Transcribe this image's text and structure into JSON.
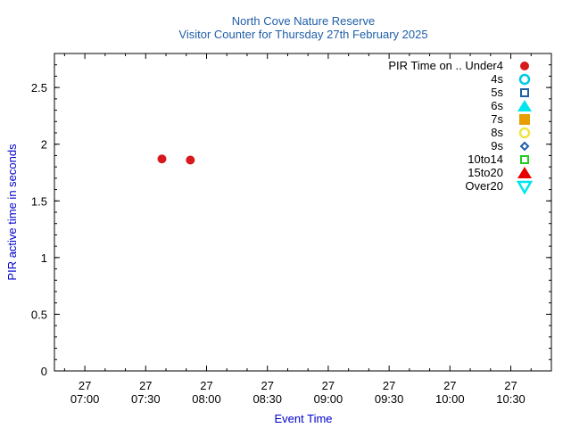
{
  "chart_data": {
    "type": "scatter",
    "title": "North Cove Nature Reserve",
    "subtitle": "Visitor Counter for Thursday 27th February 2025",
    "xlabel": "Event Time",
    "ylabel": "PIR active time in seconds",
    "xlim": [
      "2025-02-27T06:45",
      "2025-02-27T10:50"
    ],
    "ylim": [
      0,
      2.8
    ],
    "yticks": [
      0,
      0.5,
      1,
      1.5,
      2,
      2.5
    ],
    "ytick_labels": [
      "0",
      "0.5",
      "1",
      "1.5",
      "2",
      "2.5"
    ],
    "xticks": [
      {
        "value": "2025-02-27T07:00",
        "day": "27",
        "time": "07:00"
      },
      {
        "value": "2025-02-27T07:30",
        "day": "27",
        "time": "07:30"
      },
      {
        "value": "2025-02-27T08:00",
        "day": "27",
        "time": "08:00"
      },
      {
        "value": "2025-02-27T08:30",
        "day": "27",
        "time": "08:30"
      },
      {
        "value": "2025-02-27T09:00",
        "day": "27",
        "time": "09:00"
      },
      {
        "value": "2025-02-27T09:30",
        "day": "27",
        "time": "09:30"
      },
      {
        "value": "2025-02-27T10:00",
        "day": "27",
        "time": "10:00"
      },
      {
        "value": "2025-02-27T10:30",
        "day": "27",
        "time": "10:30"
      }
    ],
    "legend_placement": "top-right",
    "grid": false,
    "series": [
      {
        "name": "PIR Time on .. Under4",
        "marker": "circle-filled",
        "color": "#d7191c",
        "points": [
          {
            "x": "2025-02-27T07:38",
            "y": 1.87
          },
          {
            "x": "2025-02-27T07:52",
            "y": 1.86
          }
        ]
      },
      {
        "name": "4s",
        "marker": "circle-open",
        "color": "#00c8e6",
        "points": []
      },
      {
        "name": "5s",
        "marker": "square-open",
        "color": "#1f5fa8",
        "points": []
      },
      {
        "name": "6s",
        "marker": "triangle-filled",
        "color": "#00e5ee",
        "points": []
      },
      {
        "name": "7s",
        "marker": "square-filled",
        "color": "#e69f00",
        "points": []
      },
      {
        "name": "8s",
        "marker": "circle-open",
        "color": "#f0e442",
        "points": []
      },
      {
        "name": "9s",
        "marker": "diamond-open",
        "color": "#1f5fa8",
        "points": []
      },
      {
        "name": "10to14",
        "marker": "square-open",
        "color": "#22cc22",
        "points": []
      },
      {
        "name": "15to20",
        "marker": "triangle-filled",
        "color": "#e60000",
        "points": []
      },
      {
        "name": "Over20",
        "marker": "triangle-down-open",
        "color": "#00e5ee",
        "points": []
      }
    ]
  }
}
